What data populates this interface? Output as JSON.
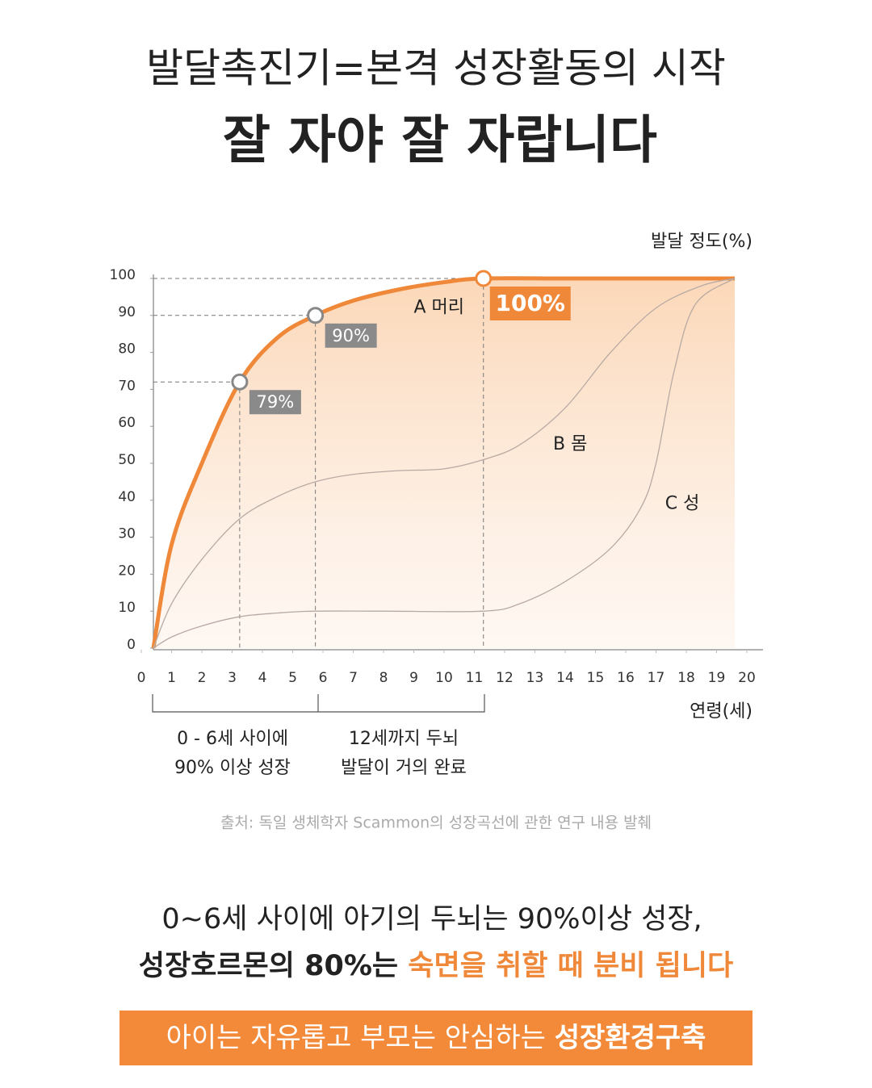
{
  "header": {
    "subtitle": "발달촉진기=본격 성장활동의 시작",
    "title": "잘 자야 잘 자랍니다"
  },
  "chart_data": {
    "type": "line",
    "y_label": "발달 정도(%)",
    "x_label": "연령(세)",
    "xlim": [
      0,
      20
    ],
    "ylim": [
      0,
      100
    ],
    "xticks": [
      0,
      1,
      2,
      3,
      4,
      5,
      6,
      7,
      8,
      9,
      10,
      11,
      12,
      13,
      14,
      15,
      16,
      17,
      18,
      19,
      20
    ],
    "yticks": [
      0,
      10,
      20,
      30,
      40,
      50,
      60,
      70,
      80,
      90,
      100
    ],
    "series": [
      {
        "name": "A 머리",
        "color": "#f0883a",
        "x": [
          0.4,
          1.0,
          2.0,
          3.25,
          4.5,
          5.75,
          7,
          8.5,
          10,
          11.3,
          14,
          17,
          19.6
        ],
        "values": [
          0,
          28,
          50,
          72,
          84,
          90,
          94,
          97,
          99,
          100,
          100,
          100,
          100
        ]
      },
      {
        "name": "B 몸",
        "color": "#b8aaa3",
        "x": [
          0.4,
          1,
          2,
          3.25,
          4.5,
          5.75,
          7,
          8.5,
          10,
          11.3,
          12.5,
          14,
          15.5,
          17,
          18.5,
          19.6
        ],
        "values": [
          0,
          12,
          24,
          35,
          41,
          45,
          47,
          48,
          48.5,
          51,
          55,
          65,
          80,
          92,
          98,
          100
        ]
      },
      {
        "name": "C 성",
        "color": "#b8aaa3",
        "x": [
          0.4,
          1,
          2,
          3.25,
          4.5,
          5.75,
          8,
          11.3,
          12.5,
          14,
          15.5,
          16.5,
          17,
          17.6,
          18.3,
          19.6
        ],
        "values": [
          0,
          3,
          6,
          8.5,
          9.5,
          10,
          10,
          10,
          12,
          18,
          27,
          38,
          50,
          75,
          93,
          100
        ]
      }
    ],
    "annotations": [
      "79%",
      "90%",
      "100%"
    ]
  },
  "notes": {
    "left": [
      "0 - 6세 사이에",
      "90% 이상 성장"
    ],
    "right": [
      "12세까지 두뇌",
      "발달이 거의 완료"
    ]
  },
  "source": "출처: 독일 생체학자 Scammon의 성장곡선에 관한 연구 내용 발췌",
  "summary": {
    "line1": "0~6세 사이에 아기의 두뇌는 90%이상 성장,",
    "line2_dark": "성장호르몬의 80%는 ",
    "line2_orange": "숙면을 취할 때 분비 됩니다"
  },
  "banner": {
    "normal": "아이는 자유롭고 부모는 안심하는 ",
    "bold": "성장환경구축"
  }
}
